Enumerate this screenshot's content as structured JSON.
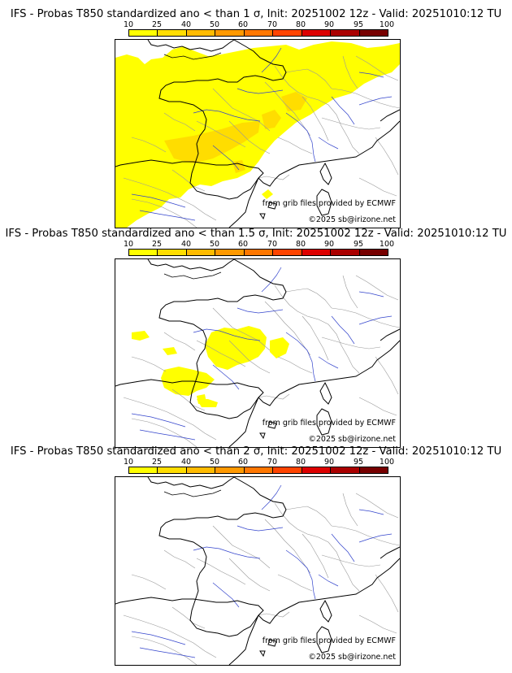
{
  "colorbar": {
    "ticks": [
      "10",
      "25",
      "40",
      "50",
      "60",
      "70",
      "80",
      "90",
      "95",
      "100"
    ],
    "colors": [
      "#ffff00",
      "#ffdd00",
      "#ffbb00",
      "#ff9900",
      "#ff7700",
      "#ff4400",
      "#dd0000",
      "#aa0000",
      "#770000"
    ]
  },
  "credits": {
    "source": "from grib files provided by ECMWF",
    "copyright": "©2025 sb@irizone.net"
  },
  "panels": [
    {
      "title": "IFS - Probas T850  standardized ano < than 1 σ, Init: 20251002 12z - Valid: 20251010:12 TU"
    },
    {
      "title": "IFS - Probas T850  standardized ano < than 1.5 σ, Init: 20251002 12z - Valid: 20251010:12 TU"
    },
    {
      "title": "IFS - Probas T850  standardized ano < than 2 σ, Init: 20251002 12z - Valid: 20251010:12 TU"
    }
  ]
}
